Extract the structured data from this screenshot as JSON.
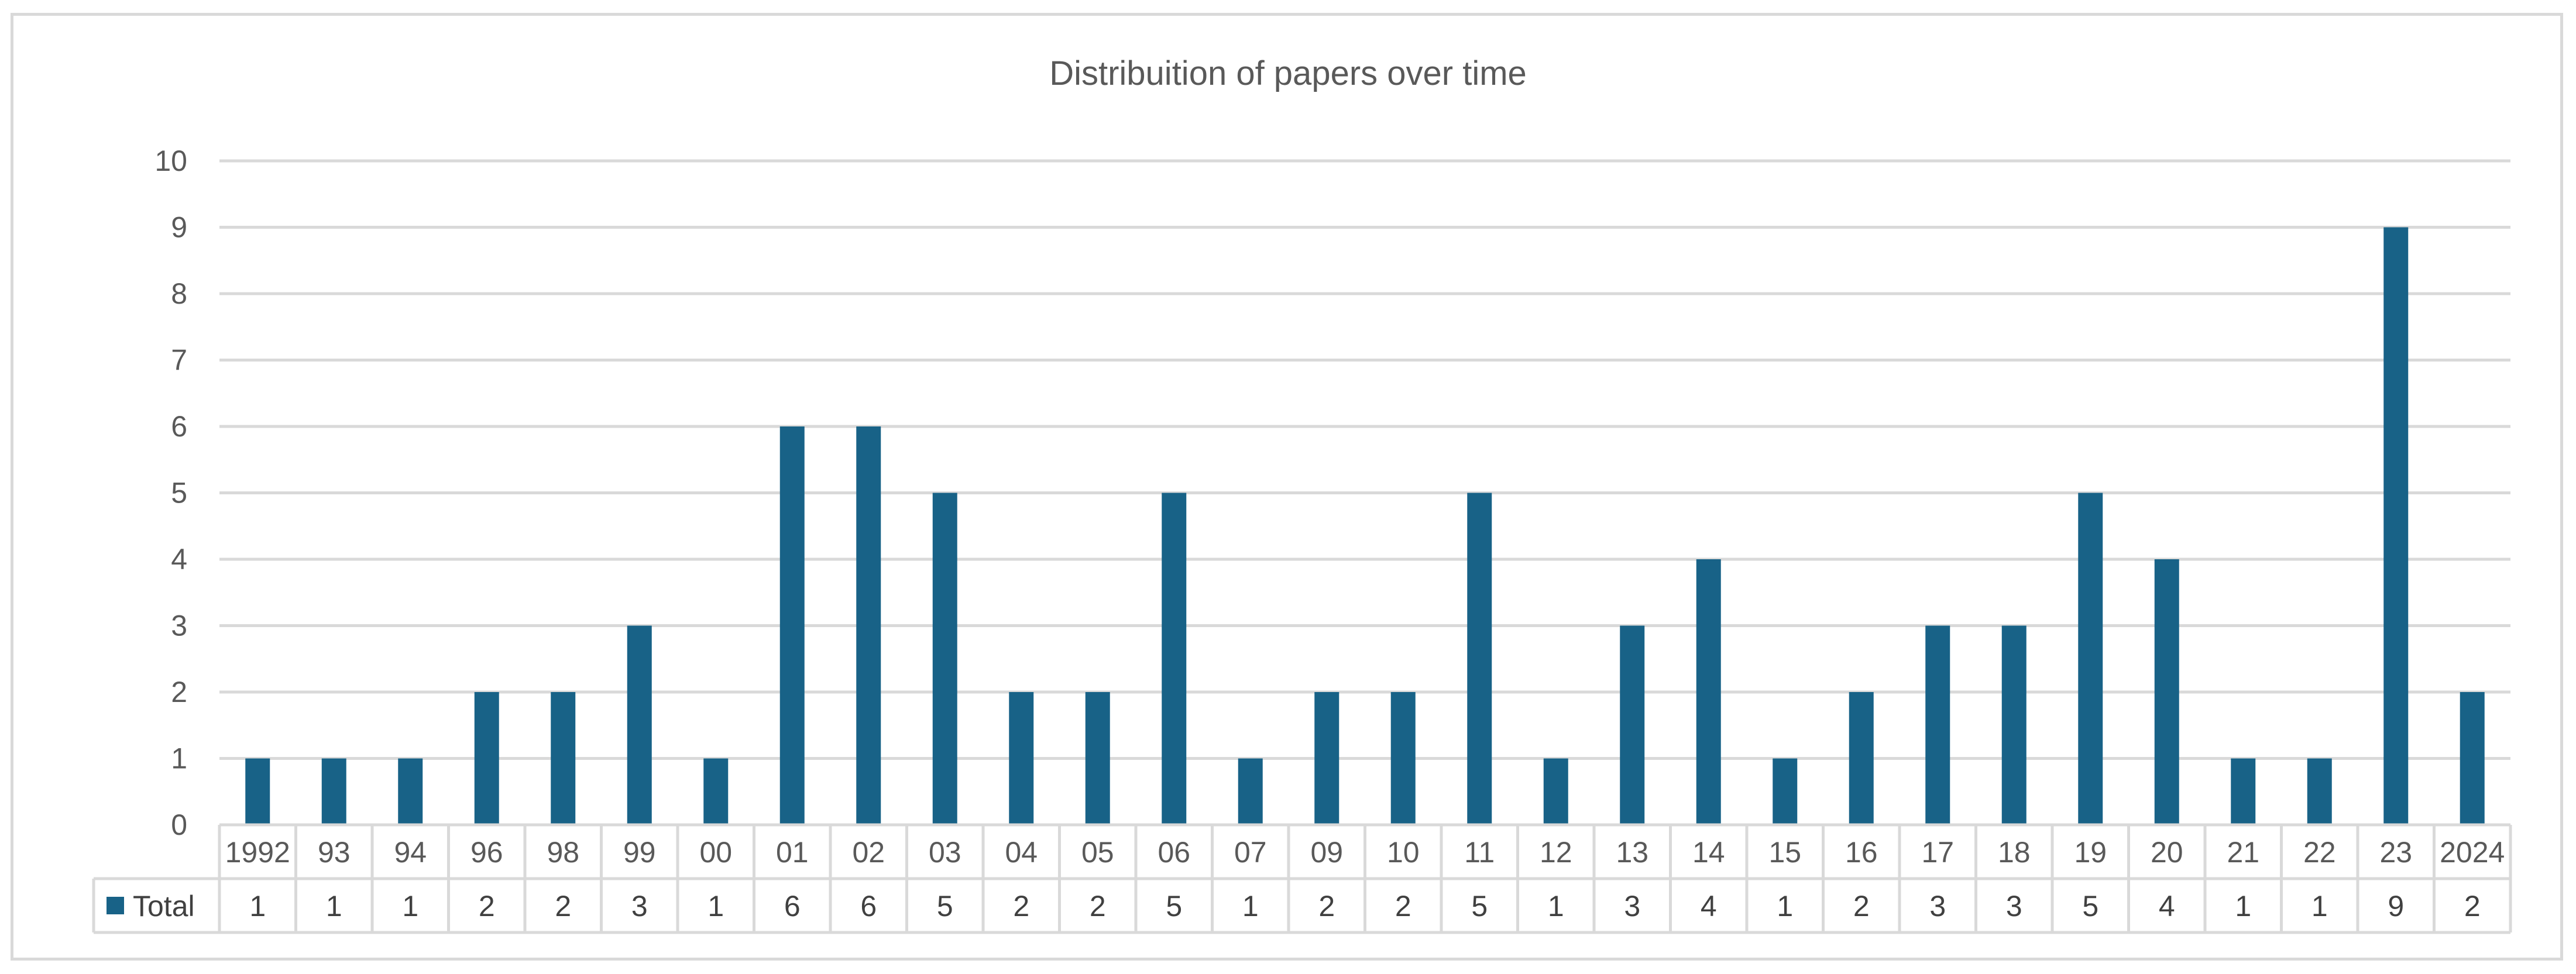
{
  "chart_data": {
    "type": "bar",
    "title": "Distribuition of papers over time",
    "categories": [
      "1992",
      "93",
      "94",
      "96",
      "98",
      "99",
      "00",
      "01",
      "02",
      "03",
      "04",
      "05",
      "06",
      "07",
      "09",
      "10",
      "11",
      "12",
      "13",
      "14",
      "15",
      "16",
      "17",
      "18",
      "19",
      "20",
      "21",
      "22",
      "23",
      "2024"
    ],
    "series": [
      {
        "name": "Total",
        "values": [
          1,
          1,
          1,
          2,
          2,
          3,
          1,
          6,
          6,
          5,
          2,
          2,
          5,
          1,
          2,
          2,
          5,
          1,
          3,
          4,
          1,
          2,
          3,
          3,
          5,
          4,
          1,
          1,
          9,
          2
        ]
      }
    ],
    "ylim": [
      0,
      10
    ],
    "yticks": [
      0,
      1,
      2,
      3,
      4,
      5,
      6,
      7,
      8,
      9,
      10
    ],
    "grid": true,
    "legend": "data table, left of bottom row",
    "data_table": true,
    "colors": {
      "bar": "#186287",
      "grid": "#d9d9d9",
      "text": "#595959",
      "border": "#d9d9d9"
    }
  }
}
